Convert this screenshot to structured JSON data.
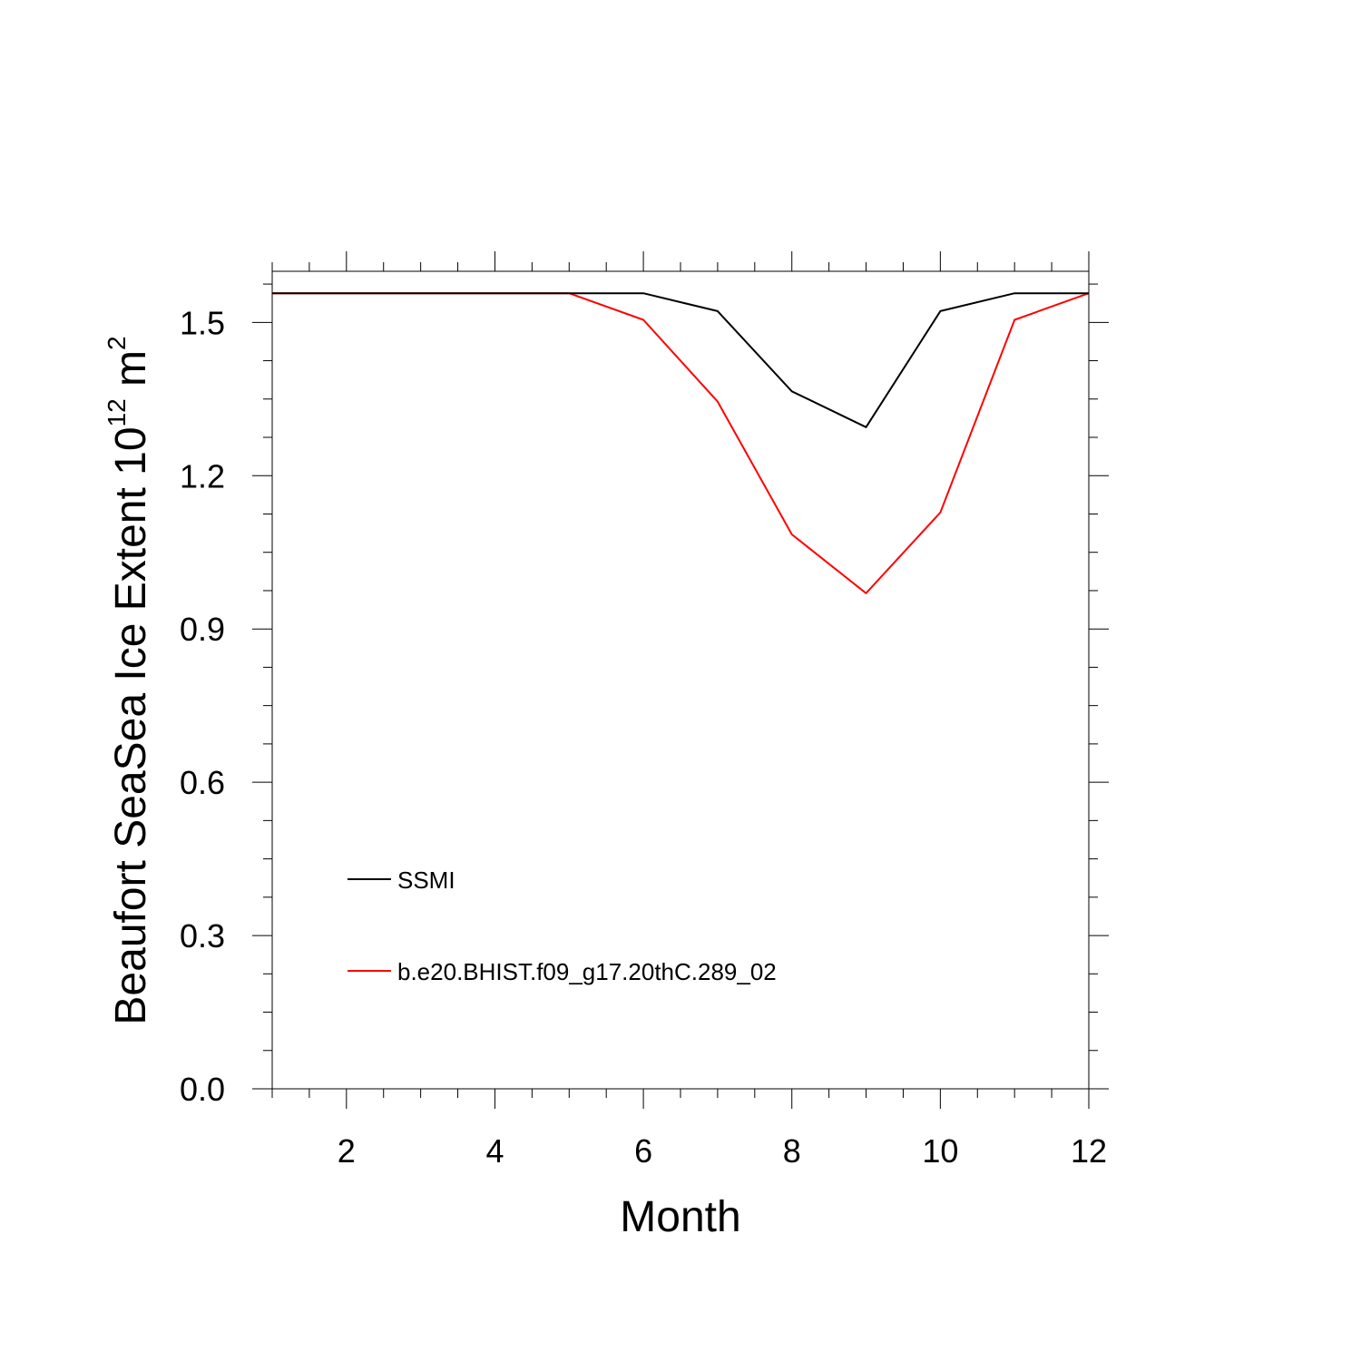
{
  "chart_data": {
    "type": "line",
    "title": "",
    "xlabel": "Month",
    "ylabel_main": "Beaufort SeaSea Ice Extent 10",
    "ylabel_exp": "12",
    "ylabel_unit": " m",
    "ylabel_unit_exp": "2",
    "xlim": [
      1,
      12
    ],
    "ylim": [
      0.0,
      1.6
    ],
    "x_ticks": [
      2,
      4,
      6,
      8,
      10,
      12
    ],
    "x_tick_labels": [
      "2",
      "4",
      "6",
      "8",
      "10",
      "12"
    ],
    "y_ticks": [
      0.0,
      0.3,
      0.6,
      0.9,
      1.2,
      1.5
    ],
    "y_tick_labels": [
      "0.0",
      "0.3",
      "0.6",
      "0.9",
      "1.2",
      "1.5"
    ],
    "x": [
      1,
      2,
      3,
      4,
      5,
      6,
      7,
      8,
      9,
      10,
      11,
      12
    ],
    "series": [
      {
        "name": "SSMI",
        "color": "#000000",
        "values": [
          1.557,
          1.557,
          1.557,
          1.557,
          1.557,
          1.557,
          1.522,
          1.365,
          1.295,
          1.522,
          1.557,
          1.557
        ]
      },
      {
        "name": "b.e20.BHIST.f09_g17.20thC.289_02",
        "color": "#ff0000",
        "values": [
          1.557,
          1.557,
          1.557,
          1.557,
          1.557,
          1.505,
          1.345,
          1.085,
          0.97,
          1.128,
          1.505,
          1.557
        ]
      }
    ],
    "legend_position": "lower-left inside plot",
    "grid": false
  }
}
